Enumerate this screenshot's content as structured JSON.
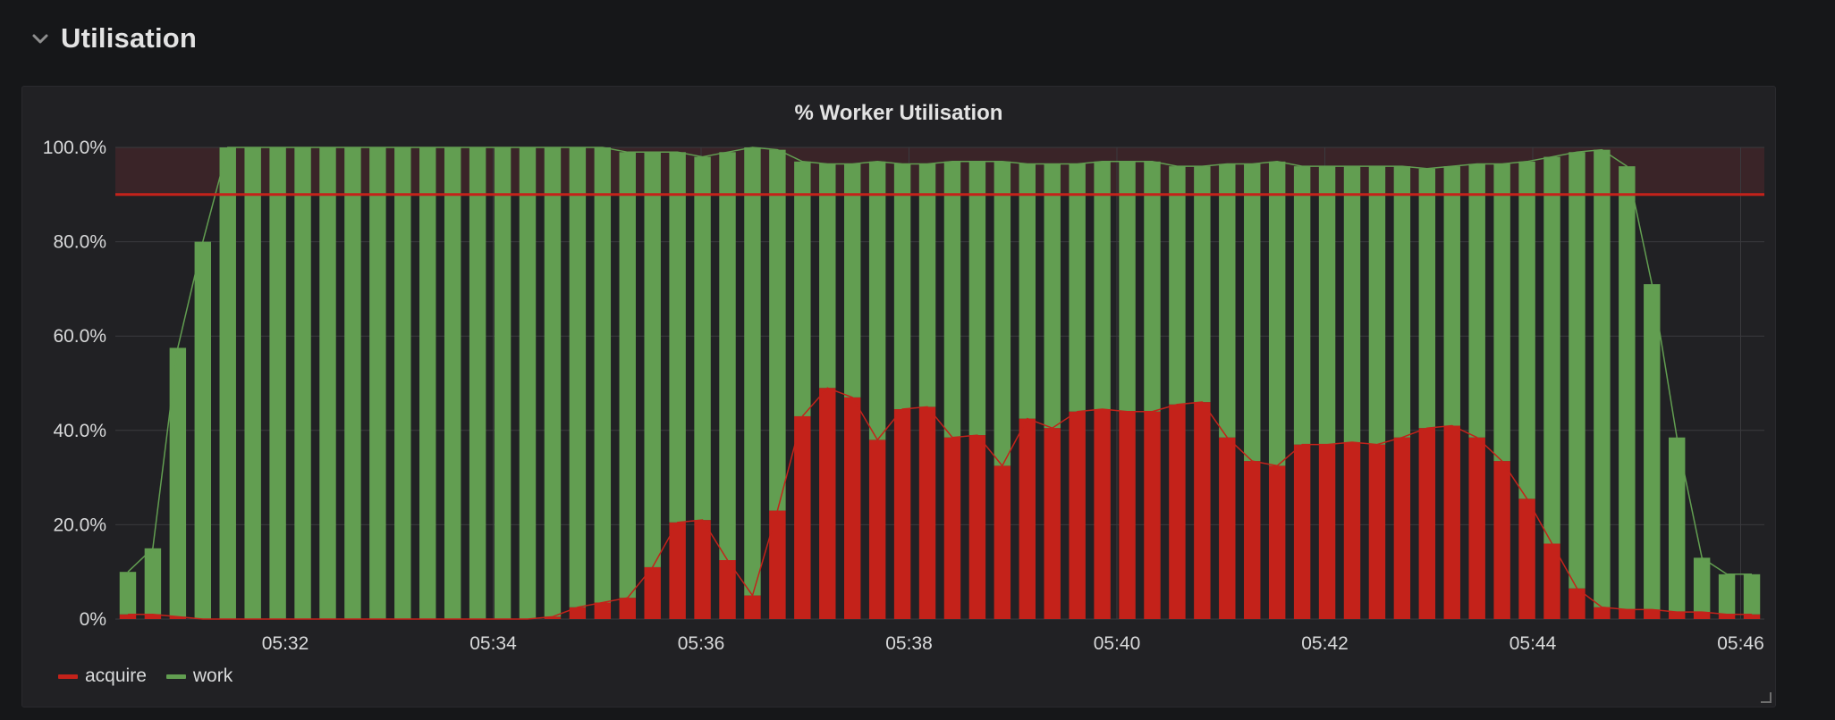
{
  "row": {
    "title": "Utilisation",
    "chevron_icon": "chevron-down-icon"
  },
  "panel": {
    "title": "% Worker Utilisation"
  },
  "colors": {
    "acquire": "#c4221a",
    "work": "#629e51",
    "threshold": "#c4221a",
    "threshold_fill": "#3a2428",
    "grid": "#3a3a3e",
    "background": "#161719",
    "panel": "#212124"
  },
  "legend": {
    "acquire_label": "acquire",
    "work_label": "work"
  },
  "chart_data": {
    "type": "bar",
    "stacked": true,
    "title": "% Worker Utilisation",
    "x_ticks": [
      "05:32",
      "05:34",
      "05:36",
      "05:38",
      "05:40",
      "05:42",
      "05:44",
      "05:46"
    ],
    "y_ticks": [
      "0%",
      "20.0%",
      "40.0%",
      "60.0%",
      "80.0%",
      "100.0%"
    ],
    "ylim": [
      0,
      100
    ],
    "threshold": 90,
    "legend_position": "bottom-left",
    "grid": true,
    "series": [
      {
        "name": "acquire",
        "values": [
          1,
          1,
          0.5,
          0,
          0,
          0,
          0,
          0,
          0,
          0,
          0,
          0,
          0,
          0,
          0,
          0,
          0,
          0.5,
          2.5,
          3.5,
          4.5,
          11,
          20.5,
          21,
          12.5,
          5,
          23,
          43,
          49,
          47,
          38,
          44.5,
          45,
          38.5,
          39,
          32.5,
          42.5,
          40.5,
          44,
          44.5,
          44,
          44,
          45.5,
          46,
          38.5,
          33.5,
          32.5,
          37,
          37,
          37.5,
          37,
          38.5,
          40.5,
          41,
          38.5,
          33.5,
          25.5,
          16,
          6.5,
          2.5,
          2,
          2,
          1.5,
          1.5,
          1,
          1
        ]
      },
      {
        "name": "work",
        "values": [
          9,
          14,
          57,
          80,
          100,
          100,
          100,
          100,
          100,
          100,
          100,
          100,
          100,
          100,
          100,
          100,
          100,
          99.5,
          97.5,
          96.5,
          94.5,
          88,
          78.5,
          77,
          86.5,
          95,
          76.5,
          54,
          47.5,
          49.5,
          59,
          52,
          51.5,
          58.5,
          58,
          64.5,
          54,
          56,
          52.5,
          52.5,
          53,
          53,
          50.5,
          50,
          58,
          63,
          64.5,
          59,
          59,
          58.5,
          59,
          57.5,
          55,
          55,
          58,
          63,
          71.5,
          82,
          92.5,
          97,
          94,
          69,
          37,
          11.5,
          8.5,
          8.5
        ]
      }
    ]
  }
}
